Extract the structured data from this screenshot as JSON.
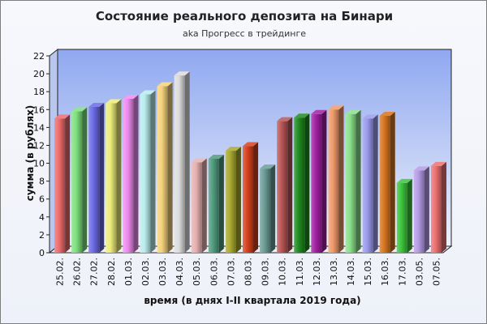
{
  "chart_data": {
    "type": "bar",
    "title": "Состояние реального депозита на Бинари",
    "subtitle": "aka Прогресс в трейдинге",
    "xlabel": "время (в днях I-II квартала 2019 года)",
    "ylabel": "сумма (в рублях)",
    "ylim": [
      0,
      22
    ],
    "yticks": [
      "0",
      "2",
      "4",
      "6",
      "8",
      "10",
      "12",
      "14",
      "16",
      "18",
      "20",
      "22"
    ],
    "grid": false,
    "legend": "none",
    "categories": [
      "25.02.",
      "26.02.",
      "27.02.",
      "28.02.",
      "01.03.",
      "02.03.",
      "03.03.",
      "04.03.",
      "05.03.",
      "06.03.",
      "07.03.",
      "08.03.",
      "09.03.",
      "10.03.",
      "11.03.",
      "12.03.",
      "13.03.",
      "14.03.",
      "15.03.",
      "16.03.",
      "17.03.",
      "03.05.",
      "07.05."
    ],
    "values": [
      15.0,
      15.8,
      16.3,
      16.7,
      17.2,
      17.7,
      18.6,
      19.8,
      10.1,
      10.5,
      11.4,
      11.9,
      9.4,
      14.7,
      15.1,
      15.5,
      16.0,
      15.5,
      15.0,
      15.3,
      7.8,
      9.2,
      9.7
    ],
    "colors": [
      "#ee6b6b",
      "#7de07d",
      "#6a6ae6",
      "#ecec7a",
      "#f08af0",
      "#b8ecec",
      "#f5d27a",
      "#dcdcdc",
      "#e6b0b0",
      "#4f9a7c",
      "#a8a82e",
      "#d6401c",
      "#6a9c96",
      "#b85454",
      "#1e8a1e",
      "#a21ea2",
      "#ef9a6b",
      "#8ae08a",
      "#9a9aee",
      "#d6741e",
      "#3cc43c",
      "#b49ae6",
      "#ec7070"
    ]
  }
}
